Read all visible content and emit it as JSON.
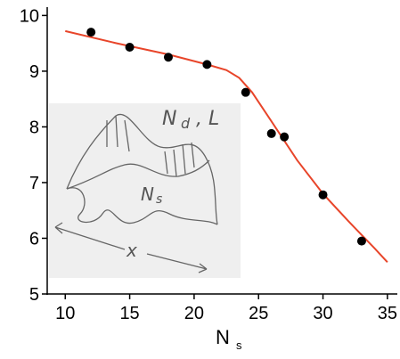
{
  "chart_data": {
    "type": "scatter",
    "x_label": "N",
    "x_label_sub": "s",
    "xlim": [
      8.6,
      35.7
    ],
    "xticks": [
      10,
      15,
      20,
      25,
      30,
      35
    ],
    "ylim": [
      5,
      10.15
    ],
    "yticks": [
      5,
      6,
      7,
      8,
      9,
      10
    ],
    "series": [
      {
        "kind": "points",
        "color": "#000000",
        "x": [
          12,
          15,
          18,
          21,
          24,
          26,
          27,
          30,
          33
        ],
        "values": [
          9.7,
          9.43,
          9.25,
          9.12,
          8.62,
          7.88,
          7.82,
          6.78,
          5.95
        ]
      },
      {
        "kind": "line",
        "color": "#e8452a",
        "x": [
          10,
          14,
          18,
          21,
          22.5,
          23.5,
          24.5,
          26,
          28,
          30,
          32,
          34,
          35
        ],
        "values": [
          9.72,
          9.5,
          9.3,
          9.12,
          9.02,
          8.88,
          8.62,
          8.1,
          7.4,
          6.8,
          6.3,
          5.82,
          5.57
        ]
      }
    ],
    "annotations": [
      "N",
      "d",
      ", L",
      "N",
      "s",
      "x"
    ]
  }
}
